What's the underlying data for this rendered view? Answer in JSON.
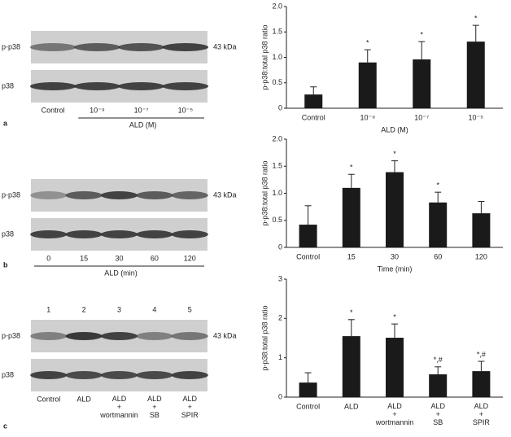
{
  "chart_data": [
    {
      "type": "bar",
      "categories": [
        "Control",
        "10⁻⁹",
        "10⁻⁷",
        "10⁻⁵"
      ],
      "values": [
        0.27,
        0.9,
        0.96,
        1.31
      ],
      "errors": [
        0.15,
        0.25,
        0.35,
        0.32
      ],
      "bar_labels": [
        null,
        "*",
        "*",
        "*"
      ],
      "color": "#1a1a1a",
      "ylabel": "p-p38:total p38 ratio",
      "xlabel": "ALD (M)",
      "ylim": [
        0,
        2
      ],
      "yticks": [
        0,
        0.5,
        {
          "value": 1,
          "label": "1.0"
        },
        1.5,
        {
          "value": 2,
          "label": "2.0"
        }
      ]
    },
    {
      "type": "bar",
      "categories": [
        "Control",
        "15",
        "30",
        "60",
        "120"
      ],
      "values": [
        0.42,
        1.1,
        1.39,
        0.83,
        0.63
      ],
      "errors": [
        0.35,
        0.25,
        0.21,
        0.19,
        0.22
      ],
      "bar_labels": [
        null,
        "*",
        "*",
        "*",
        null
      ],
      "color": "#1a1a1a",
      "ylabel": "p-p38:total p38 ratio",
      "xlabel": "Time (min)",
      "ylim": [
        0,
        2
      ],
      "yticks": [
        0,
        0.5,
        {
          "value": 1,
          "label": "1.0"
        },
        1.5,
        {
          "value": 2,
          "label": "2.0"
        }
      ]
    },
    {
      "type": "bar",
      "categories": [
        "Control",
        "ALD",
        "ALD\n+\nwortmannin",
        "ALD\n+\nSB",
        "ALD\n+\nSPIR"
      ],
      "values": [
        0.37,
        1.55,
        1.51,
        0.58,
        0.66
      ],
      "errors": [
        0.25,
        0.42,
        0.35,
        0.19,
        0.25
      ],
      "bar_labels": [
        null,
        "*",
        "*",
        "*,#",
        "*,#"
      ],
      "color": "#1a1a1a",
      "ylabel": "p-p38:total p38 ratio",
      "ylim": [
        0,
        3
      ],
      "yticks": [
        0,
        1,
        2,
        3
      ]
    }
  ],
  "blots": [
    {
      "panel": "a",
      "row_labels": [
        "p-p38",
        "p38"
      ],
      "size": "43 kDa",
      "lanes": [
        "Control",
        "10⁻⁹",
        "10⁻⁷",
        "10⁻⁵"
      ],
      "group": "ALD (M)"
    },
    {
      "panel": "b",
      "row_labels": [
        "p-p38",
        "p38"
      ],
      "size": "43 kDa",
      "lanes": [
        "0",
        "15",
        "30",
        "60",
        "120"
      ],
      "group": "ALD (min)"
    },
    {
      "panel": "c",
      "row_labels": [
        "p-p38",
        "p38"
      ],
      "size": "43 kDa",
      "lane_numbers": [
        "1",
        "2",
        "3",
        "4",
        "5"
      ],
      "lanes": [
        "Control",
        "ALD",
        "ALD\n+\nwortmannin",
        "ALD\n+\nSB",
        "ALD\n+\nSPIR"
      ]
    }
  ]
}
